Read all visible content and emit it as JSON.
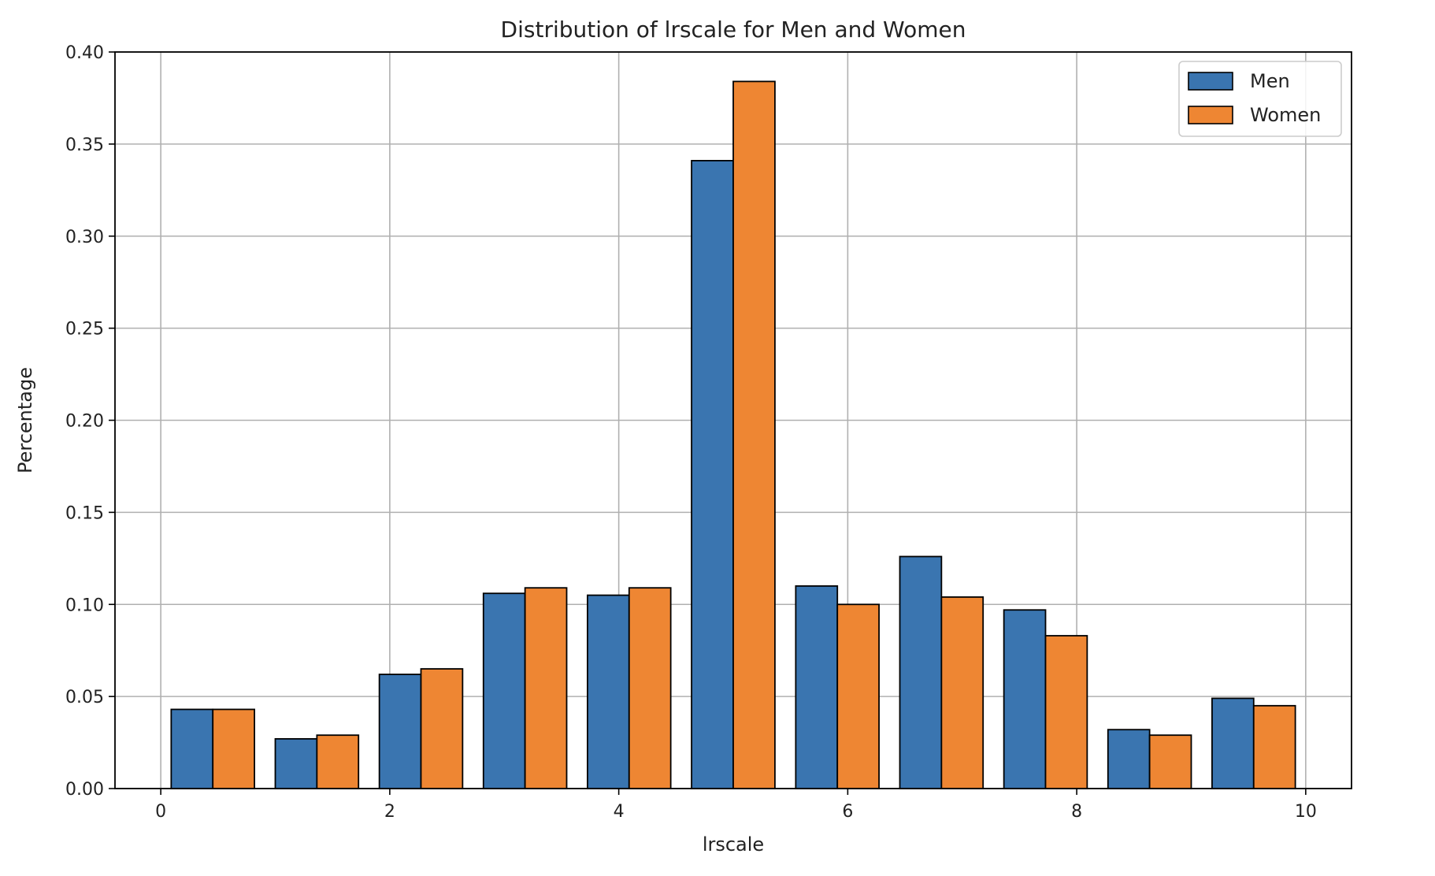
{
  "chart_data": {
    "type": "bar",
    "title": "Distribution of lrscale for Men and Women",
    "xlabel": "lrscale",
    "ylabel": "Percentage",
    "xlim": [
      -0.4,
      10.4
    ],
    "ylim": [
      0.0,
      0.4
    ],
    "x_ticks": [
      "0",
      "2",
      "4",
      "6",
      "8",
      "10"
    ],
    "y_ticks": [
      "0.00",
      "0.05",
      "0.10",
      "0.15",
      "0.20",
      "0.25",
      "0.30",
      "0.35",
      "0.40"
    ],
    "grid": true,
    "legend_position": "top-right",
    "bin_edges": [
      0,
      0.909,
      1.818,
      2.727,
      3.636,
      4.545,
      5.455,
      6.364,
      7.273,
      8.182,
      9.091,
      10
    ],
    "series": [
      {
        "name": "Men",
        "color": "#3a75b0",
        "values": [
          0.043,
          0.027,
          0.062,
          0.106,
          0.105,
          0.341,
          0.11,
          0.126,
          0.097,
          0.032,
          0.049
        ]
      },
      {
        "name": "Women",
        "color": "#ee8633",
        "values": [
          0.043,
          0.029,
          0.065,
          0.109,
          0.109,
          0.384,
          0.1,
          0.104,
          0.083,
          0.029,
          0.045
        ]
      }
    ]
  }
}
